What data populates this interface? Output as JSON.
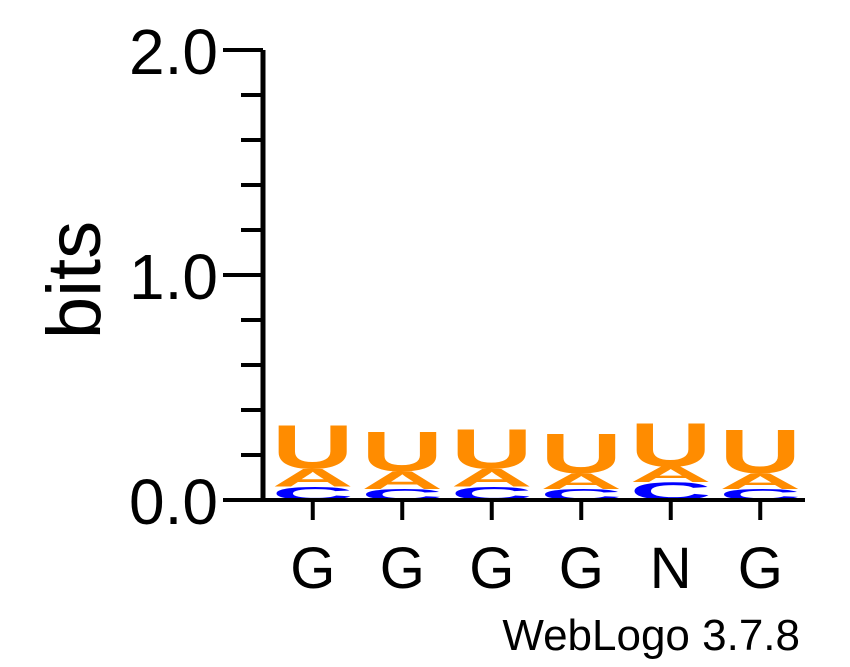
{
  "chart_data": {
    "type": "sequence-logo",
    "ylabel": "bits",
    "ylim": [
      0,
      2.0
    ],
    "yticks": [
      {
        "value": 0.0,
        "label": "0.0"
      },
      {
        "value": 1.0,
        "label": "1.0"
      },
      {
        "value": 2.0,
        "label": "2.0"
      }
    ],
    "minor_tick_step": 0.2,
    "positions": [
      {
        "label": "G",
        "stack": [
          {
            "letter": "C",
            "bits": 0.06
          },
          {
            "letter": "A",
            "bits": 0.08
          },
          {
            "letter": "U",
            "bits": 0.2
          }
        ]
      },
      {
        "label": "G",
        "stack": [
          {
            "letter": "C",
            "bits": 0.05
          },
          {
            "letter": "A",
            "bits": 0.08
          },
          {
            "letter": "U",
            "bits": 0.18
          }
        ]
      },
      {
        "label": "G",
        "stack": [
          {
            "letter": "C",
            "bits": 0.06
          },
          {
            "letter": "A",
            "bits": 0.08
          },
          {
            "letter": "U",
            "bits": 0.18
          }
        ]
      },
      {
        "label": "G",
        "stack": [
          {
            "letter": "C",
            "bits": 0.05
          },
          {
            "letter": "A",
            "bits": 0.07
          },
          {
            "letter": "U",
            "bits": 0.18
          }
        ]
      },
      {
        "label": "N",
        "stack": [
          {
            "letter": "C",
            "bits": 0.08
          },
          {
            "letter": "A",
            "bits": 0.07
          },
          {
            "letter": "U",
            "bits": 0.2
          }
        ]
      },
      {
        "label": "G",
        "stack": [
          {
            "letter": "C",
            "bits": 0.05
          },
          {
            "letter": "A",
            "bits": 0.07
          },
          {
            "letter": "U",
            "bits": 0.2
          }
        ]
      }
    ],
    "colors": {
      "U": "#ff8c00",
      "A": "#ff8c00",
      "C": "#0000ff",
      "G": "#000000"
    },
    "footer": "WebLogo 3.7.8"
  }
}
